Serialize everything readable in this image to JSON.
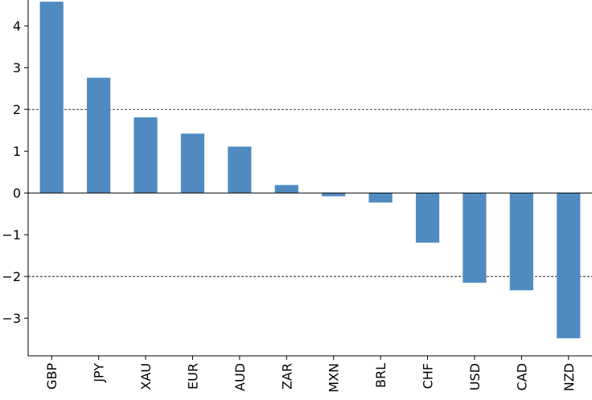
{
  "chart_data": {
    "type": "bar",
    "title": "",
    "xlabel": "",
    "ylabel": "",
    "categories": [
      "GBP",
      "JPY",
      "XAU",
      "EUR",
      "AUD",
      "ZAR",
      "MXN",
      "BRL",
      "CHF",
      "USD",
      "CAD",
      "NZD"
    ],
    "values": [
      4.58,
      2.76,
      1.81,
      1.42,
      1.11,
      0.19,
      -0.08,
      -0.23,
      -1.19,
      -2.15,
      -2.33,
      -3.48
    ],
    "ylim": [
      -3.9,
      4.62
    ],
    "yticks": [
      -3,
      -2,
      -1,
      0,
      1,
      2,
      3,
      4
    ],
    "ytick_labels": [
      "−3",
      "−2",
      "−1",
      "0",
      "1",
      "2",
      "3",
      "4"
    ],
    "reference_lines": [
      2,
      -2
    ],
    "zero_line": true,
    "grid": false,
    "legend": "none",
    "bar_color": "#4f8bc1"
  }
}
